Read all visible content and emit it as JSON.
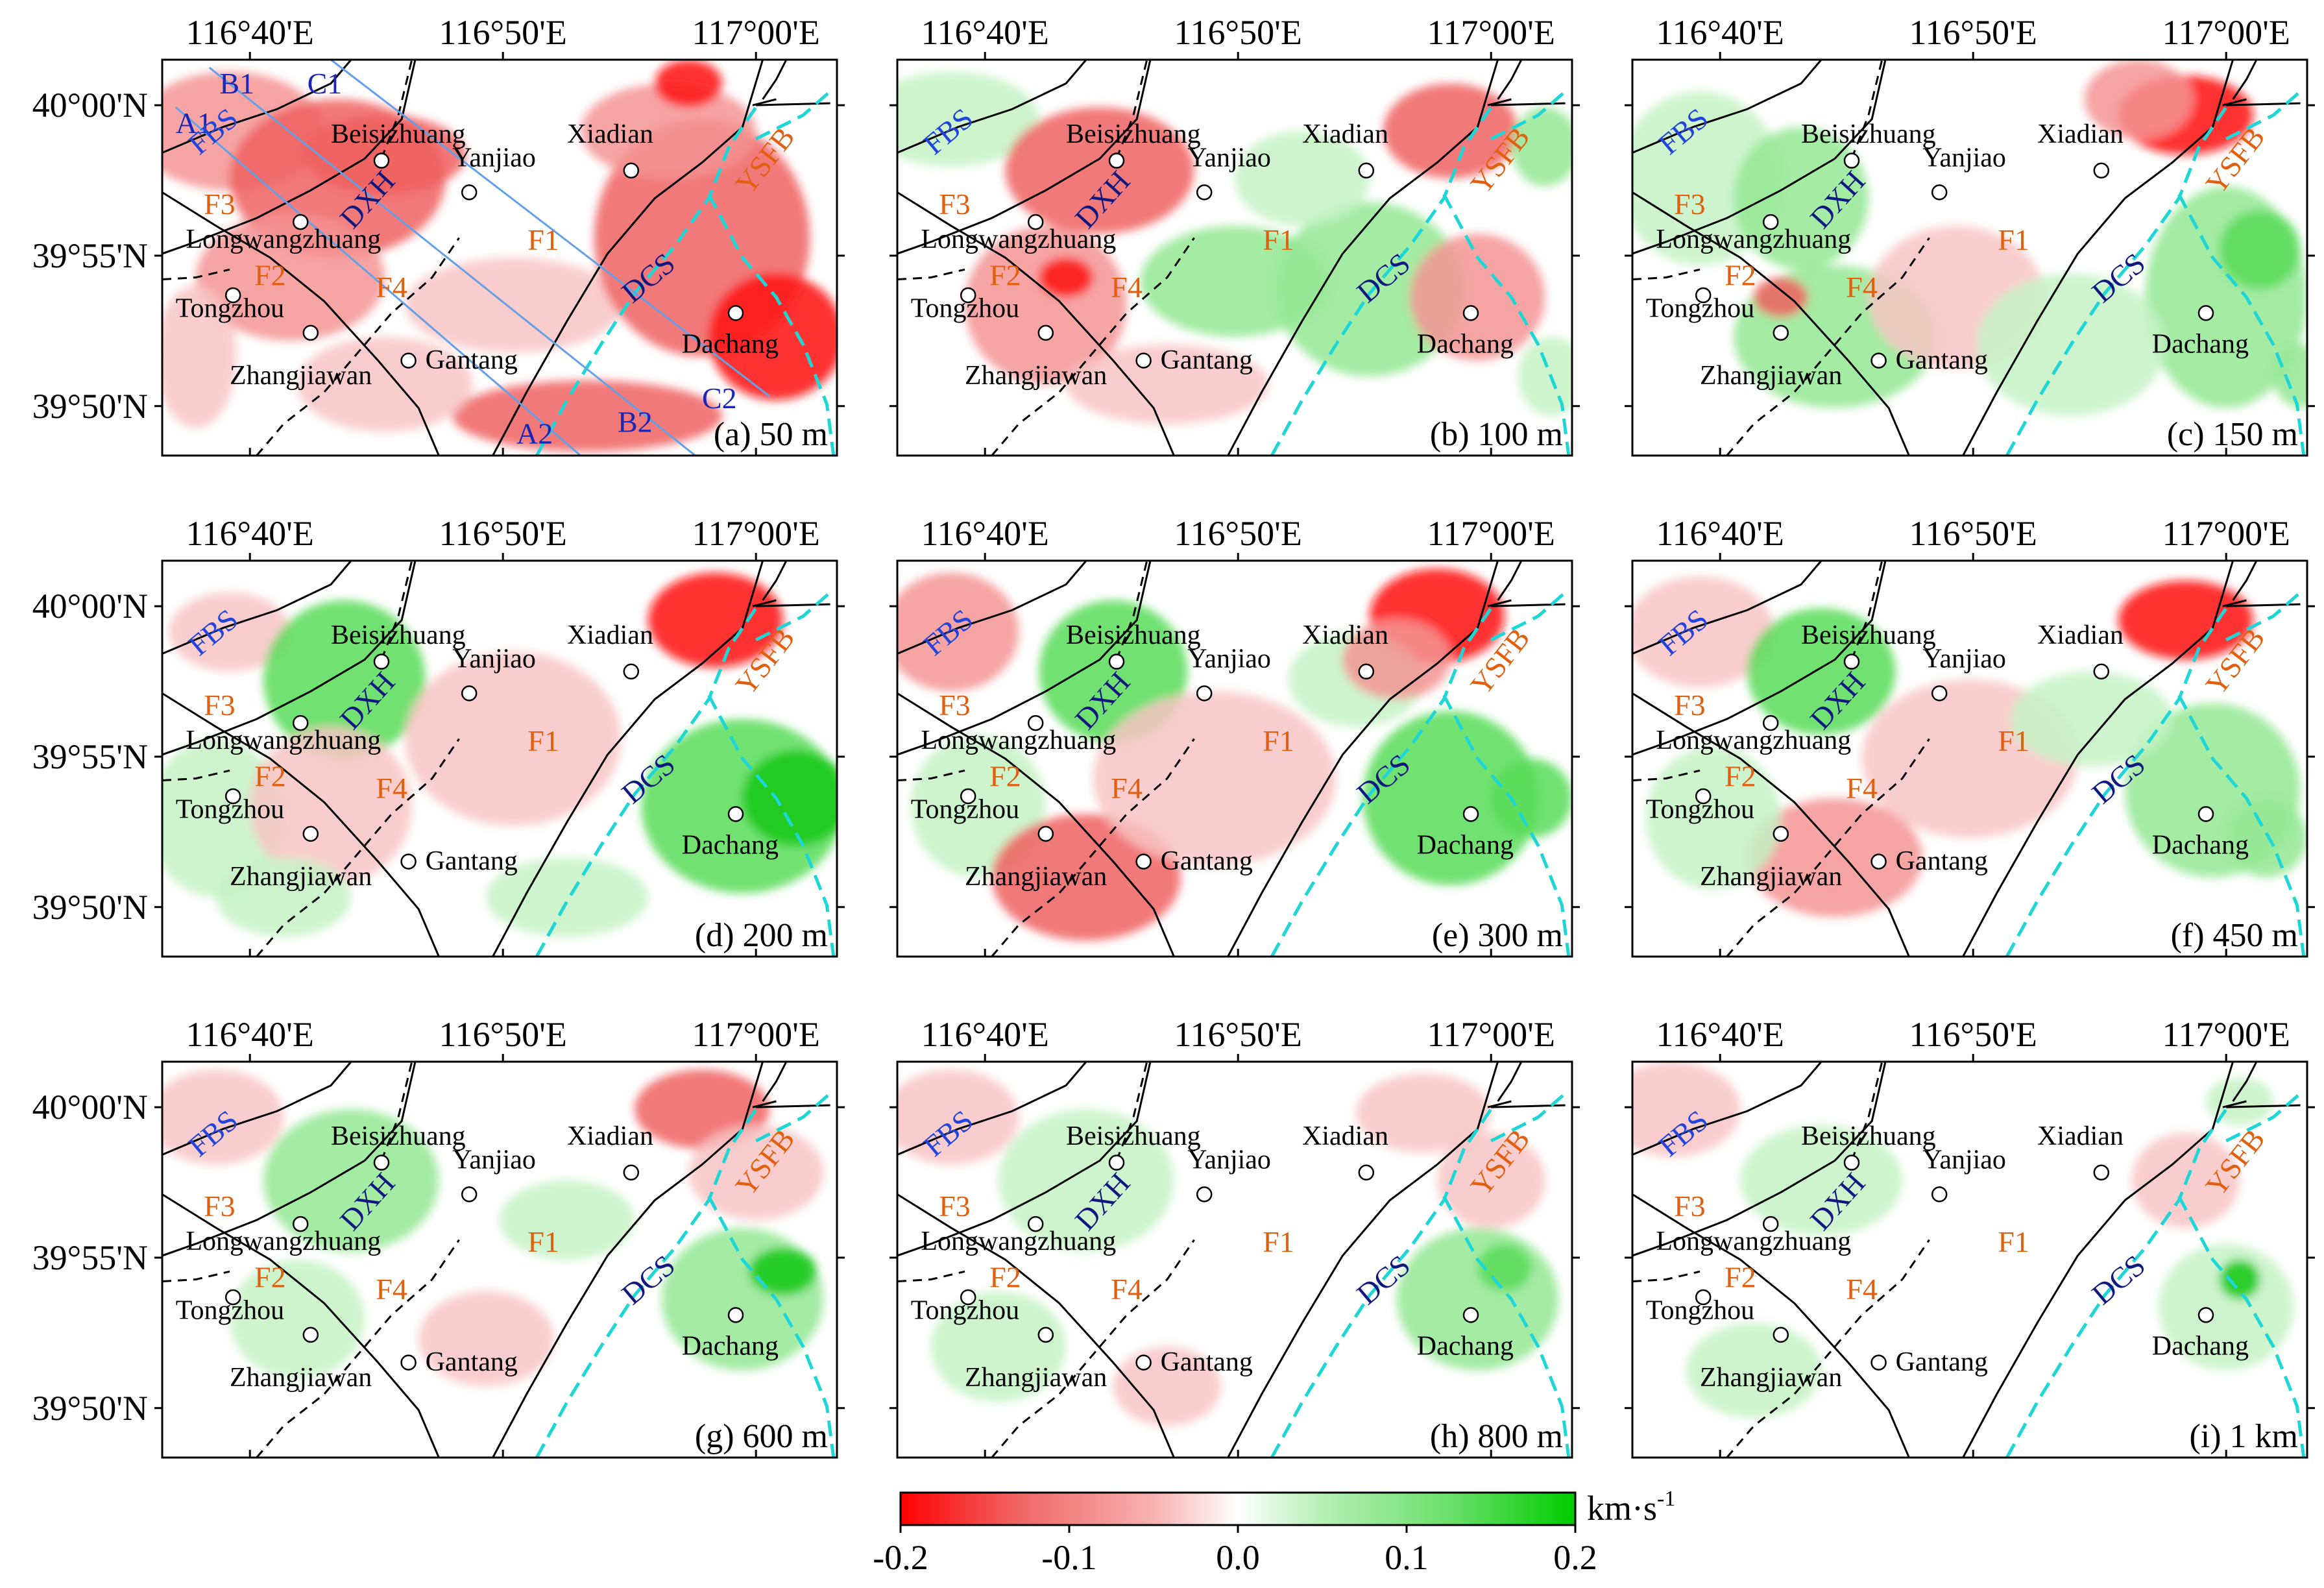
{
  "axes": {
    "x_ticks": [
      "116°40'E",
      "116°50'E",
      "117°00'E"
    ],
    "y_ticks": [
      "40°00'N",
      "39°55'N",
      "39°50'N"
    ]
  },
  "fault_labels": {
    "FBS": "FBS",
    "DXH": "DXH",
    "DCS": "DCS",
    "YSFB": "YSFB",
    "F1": "F1",
    "F2": "F2",
    "F3": "F3",
    "F4": "F4"
  },
  "places": {
    "Beisizhuang": "Beisizhuang",
    "Yanjiao": "Yanjiao",
    "Xiadian": "Xiadian",
    "Longwangzhuang": "Longwangzhuang",
    "Tongzhou": "Tongzhou",
    "Zhangjiawan": "Zhangjiawan",
    "Gantang": "Gantang",
    "Dachang": "Dachang"
  },
  "profiles": [
    "A1",
    "A2",
    "B1",
    "B2",
    "C1",
    "C2"
  ],
  "panels": [
    {
      "id": "a",
      "label": "(a) 50 m"
    },
    {
      "id": "b",
      "label": "(b) 100 m"
    },
    {
      "id": "c",
      "label": "(c) 150 m"
    },
    {
      "id": "d",
      "label": "(d) 200 m"
    },
    {
      "id": "e",
      "label": "(e) 300 m"
    },
    {
      "id": "f",
      "label": "(f) 450 m"
    },
    {
      "id": "g",
      "label": "(g) 600 m"
    },
    {
      "id": "h",
      "label": "(h) 800 m"
    },
    {
      "id": "i",
      "label": "(i) 1 km"
    }
  ],
  "colorbar": {
    "unit_base": "km·s",
    "unit_exp": "-1",
    "ticks": [
      "-0.2",
      "-0.1",
      "0.0",
      "0.1",
      "0.2"
    ],
    "colors": [
      "#ff0000",
      "#f06868",
      "#f7b4b4",
      "#ffffff",
      "#b8f0b8",
      "#68df68",
      "#00cc00"
    ]
  },
  "colors": {
    "fault": "#000000",
    "dashed_fault": "#1ed6d6",
    "profile_line": "#64a0e6",
    "fault_label": "#e06010",
    "fbs_label": "#2244dd",
    "dxh_dcs_label": "#101880",
    "profile_label": "#1a26b5"
  }
}
